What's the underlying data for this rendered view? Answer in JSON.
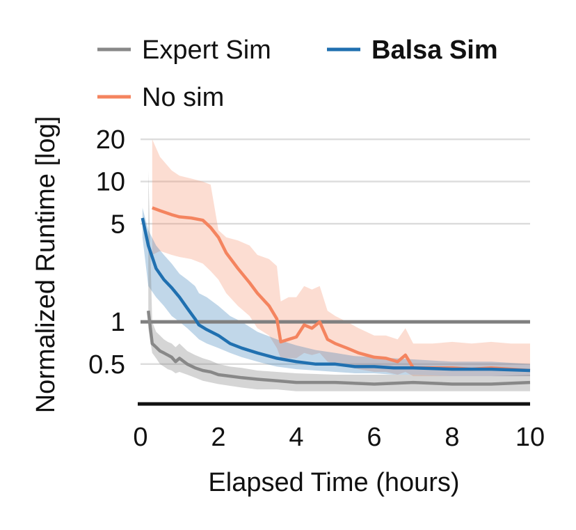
{
  "chart_data": {
    "type": "line",
    "xlabel": "Elapsed Time (hours)",
    "ylabel": "Normalized Runtime [log]",
    "xlim": [
      0,
      10
    ],
    "ylim": [
      0.26,
      20
    ],
    "yscale": "log",
    "x_ticks": [
      0,
      2,
      4,
      6,
      8,
      10
    ],
    "x_tick_labels": [
      "0",
      "2",
      "4",
      "6",
      "8",
      "10"
    ],
    "y_ticks": [
      0.5,
      1,
      5,
      10,
      20
    ],
    "y_tick_labels": [
      "0.5",
      "1",
      "5",
      "10",
      "20"
    ],
    "gridlines_y": [
      0.5,
      5,
      10,
      20
    ],
    "reference_line": 1,
    "legend_position": "top",
    "colors": {
      "expert": "#888888",
      "balsa": "#2070b0",
      "nosim": "#f4845f",
      "reference": "#808080"
    },
    "series": [
      {
        "name": "Expert Sim",
        "key": "expert",
        "bold": false,
        "x": [
          0.2,
          0.3,
          0.4,
          0.5,
          0.6,
          0.7,
          0.8,
          0.9,
          1.0,
          1.2,
          1.4,
          1.6,
          1.8,
          2.0,
          2.3,
          2.6,
          3.0,
          3.5,
          4.0,
          5.0,
          6.0,
          7.0,
          8.0,
          9.0,
          10.0
        ],
        "values": [
          1.2,
          0.7,
          0.66,
          0.62,
          0.6,
          0.58,
          0.56,
          0.52,
          0.55,
          0.5,
          0.47,
          0.45,
          0.44,
          0.42,
          0.41,
          0.4,
          0.39,
          0.38,
          0.37,
          0.37,
          0.36,
          0.37,
          0.36,
          0.36,
          0.37
        ],
        "lower": [
          0.9,
          0.6,
          0.55,
          0.5,
          0.48,
          0.46,
          0.45,
          0.43,
          0.44,
          0.42,
          0.4,
          0.38,
          0.37,
          0.36,
          0.35,
          0.34,
          0.33,
          0.33,
          0.32,
          0.32,
          0.32,
          0.32,
          0.32,
          0.32,
          0.32
        ],
        "upper": [
          12,
          1.0,
          0.85,
          0.8,
          0.75,
          0.72,
          0.7,
          0.66,
          0.7,
          0.62,
          0.58,
          0.55,
          0.53,
          0.5,
          0.48,
          0.47,
          0.45,
          0.44,
          0.43,
          0.42,
          0.42,
          0.42,
          0.41,
          0.41,
          0.42
        ]
      },
      {
        "name": "Balsa Sim",
        "key": "balsa",
        "bold": true,
        "x": [
          0.05,
          0.2,
          0.4,
          0.6,
          0.8,
          1.0,
          1.2,
          1.4,
          1.5,
          1.7,
          2.0,
          2.3,
          2.6,
          3.0,
          3.5,
          4.0,
          4.5,
          5.0,
          5.5,
          6.0,
          6.5,
          7.0,
          8.0,
          9.0,
          10.0
        ],
        "values": [
          5.5,
          3.5,
          2.4,
          2.0,
          1.75,
          1.5,
          1.25,
          1.05,
          0.95,
          0.88,
          0.8,
          0.7,
          0.65,
          0.6,
          0.55,
          0.52,
          0.5,
          0.5,
          0.48,
          0.48,
          0.47,
          0.47,
          0.46,
          0.46,
          0.45
        ],
        "lower": [
          4.0,
          1.8,
          1.5,
          1.3,
          1.1,
          1.0,
          0.9,
          0.8,
          0.75,
          0.7,
          0.65,
          0.6,
          0.56,
          0.52,
          0.48,
          0.46,
          0.45,
          0.44,
          0.43,
          0.43,
          0.42,
          0.42,
          0.41,
          0.41,
          0.41
        ],
        "upper": [
          6.5,
          4.5,
          3.5,
          3.0,
          2.6,
          2.2,
          2.0,
          1.8,
          1.6,
          1.5,
          1.3,
          1.1,
          1.0,
          0.85,
          0.75,
          0.68,
          0.63,
          0.6,
          0.57,
          0.56,
          0.55,
          0.54,
          0.52,
          0.52,
          0.5
        ]
      },
      {
        "name": "No sim",
        "key": "nosim",
        "bold": false,
        "x": [
          0.3,
          0.5,
          0.8,
          1.0,
          1.3,
          1.6,
          1.8,
          2.0,
          2.2,
          2.5,
          2.8,
          3.0,
          3.3,
          3.5,
          3.6,
          3.8,
          4.0,
          4.2,
          4.4,
          4.6,
          4.8,
          5.0,
          5.3,
          5.6,
          6.0,
          6.3,
          6.6,
          6.8,
          7.0,
          7.5,
          8.0,
          8.5,
          9.0,
          9.5,
          10.0
        ],
        "values": [
          6.5,
          6.2,
          5.8,
          5.6,
          5.5,
          5.3,
          4.7,
          4.0,
          3.1,
          2.4,
          1.9,
          1.6,
          1.3,
          1.05,
          0.72,
          0.75,
          0.78,
          0.95,
          0.9,
          1.0,
          0.75,
          0.7,
          0.65,
          0.6,
          0.56,
          0.55,
          0.52,
          0.58,
          0.47,
          0.47,
          0.47,
          0.46,
          0.47,
          0.46,
          0.45
        ],
        "lower": [
          3.0,
          3.2,
          3.0,
          2.9,
          2.8,
          2.6,
          2.3,
          2.0,
          1.6,
          1.3,
          1.1,
          0.9,
          0.8,
          0.65,
          0.55,
          0.55,
          0.55,
          0.6,
          0.58,
          0.6,
          0.52,
          0.5,
          0.48,
          0.46,
          0.44,
          0.44,
          0.42,
          0.44,
          0.41,
          0.41,
          0.41,
          0.41,
          0.41,
          0.41,
          0.41
        ],
        "upper": [
          20,
          15,
          12,
          11,
          10.5,
          10,
          9.5,
          4.5,
          4.0,
          3.8,
          3.5,
          3.0,
          2.8,
          2.5,
          1.4,
          1.5,
          1.5,
          1.8,
          1.7,
          1.8,
          1.2,
          1.1,
          1.0,
          0.9,
          0.8,
          0.8,
          0.75,
          0.9,
          0.7,
          0.7,
          0.72,
          0.7,
          0.72,
          0.7,
          0.7
        ]
      }
    ]
  }
}
